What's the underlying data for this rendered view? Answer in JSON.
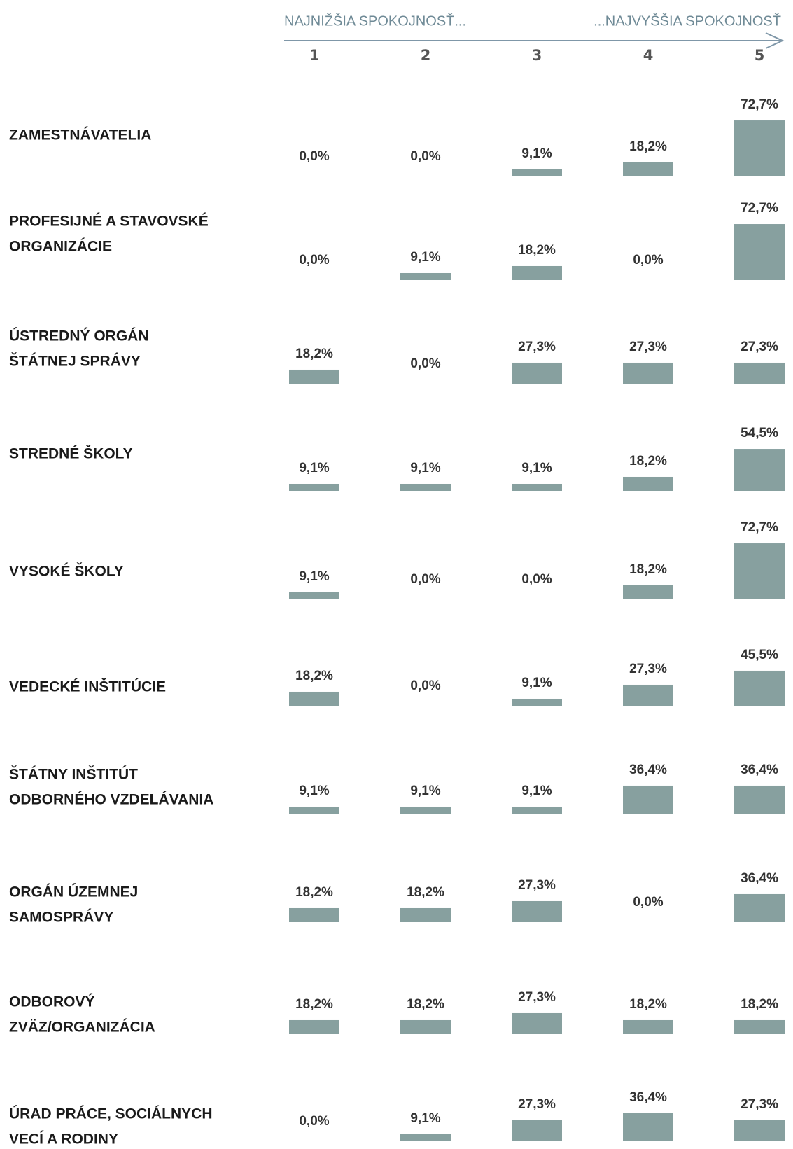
{
  "chart_data": {
    "type": "bar-grid",
    "low_label": "NAJNIŽŠIA SPOKOJNOSŤ...",
    "high_label": "...NAJVYŠŠIA SPOKOJNOSŤ",
    "categories": [
      "1",
      "2",
      "3",
      "4",
      "5"
    ],
    "color": "#87a09f",
    "series": [
      {
        "name": [
          "ZAMESTNÁVATELIA"
        ],
        "values": [
          0,
          0,
          9.1,
          18.2,
          72.7
        ],
        "value_labels": [
          "0,0%",
          "0,0%",
          "9,1%",
          "18,2%",
          "72,7%"
        ]
      },
      {
        "name": [
          "PROFESIJNÉ A STAVOVSKÉ",
          "ORGANIZÁCIE"
        ],
        "values": [
          0,
          9.1,
          18.2,
          0,
          72.7
        ],
        "value_labels": [
          "0,0%",
          "9,1%",
          "18,2%",
          "0,0%",
          "72,7%"
        ]
      },
      {
        "name": [
          "ÚSTREDNÝ ORGÁN",
          "ŠTÁTNEJ SPRÁVY"
        ],
        "values": [
          18.2,
          0,
          27.3,
          27.3,
          27.3
        ],
        "value_labels": [
          "18,2%",
          "0,0%",
          "27,3%",
          "27,3%",
          "27,3%"
        ]
      },
      {
        "name": [
          "STREDNÉ ŠKOLY"
        ],
        "values": [
          9.1,
          9.1,
          9.1,
          18.2,
          54.5
        ],
        "value_labels": [
          "9,1%",
          "9,1%",
          "9,1%",
          "18,2%",
          "54,5%"
        ]
      },
      {
        "name": [
          "VYSOKÉ ŠKOLY"
        ],
        "values": [
          9.1,
          0,
          0,
          18.2,
          72.7
        ],
        "value_labels": [
          "9,1%",
          "0,0%",
          "0,0%",
          "18,2%",
          "72,7%"
        ]
      },
      {
        "name": [
          "VEDECKÉ INŠTITÚCIE"
        ],
        "values": [
          18.2,
          0,
          9.1,
          27.3,
          45.5
        ],
        "value_labels": [
          "18,2%",
          "0,0%",
          "9,1%",
          "27,3%",
          "45,5%"
        ]
      },
      {
        "name": [
          "ŠTÁTNY INŠTITÚT",
          "ODBORNÉHO VZDELÁVANIA"
        ],
        "values": [
          9.1,
          9.1,
          9.1,
          36.4,
          36.4
        ],
        "value_labels": [
          "9,1%",
          "9,1%",
          "9,1%",
          "36,4%",
          "36,4%"
        ]
      },
      {
        "name": [
          "ORGÁN ÚZEMNEJ",
          "SAMOSPRÁVY"
        ],
        "values": [
          18.2,
          18.2,
          27.3,
          0,
          36.4
        ],
        "value_labels": [
          "18,2%",
          "18,2%",
          "27,3%",
          "0,0%",
          "36,4%"
        ]
      },
      {
        "name": [
          "ODBOROVÝ",
          "ZVÄZ/ORGANIZÁCIA"
        ],
        "values": [
          18.2,
          18.2,
          27.3,
          18.2,
          18.2
        ],
        "value_labels": [
          "18,2%",
          "18,2%",
          "27,3%",
          "18,2%",
          "18,2%"
        ]
      },
      {
        "name": [
          "ÚRAD PRÁCE, SOCIÁLNYCH",
          "VECÍ A RODINY"
        ],
        "values": [
          0,
          9.1,
          27.3,
          36.4,
          27.3
        ],
        "value_labels": [
          "0,0%",
          "9,1%",
          "27,3%",
          "36,4%",
          "27,3%"
        ]
      }
    ]
  }
}
